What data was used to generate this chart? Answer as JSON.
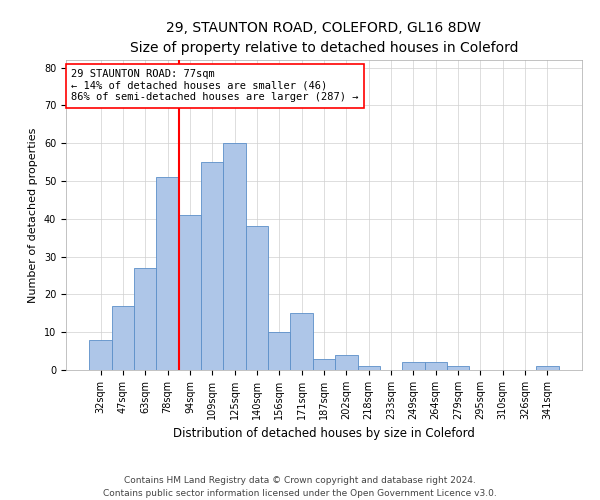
{
  "title1": "29, STAUNTON ROAD, COLEFORD, GL16 8DW",
  "title2": "Size of property relative to detached houses in Coleford",
  "xlabel": "Distribution of detached houses by size in Coleford",
  "ylabel": "Number of detached properties",
  "bar_labels": [
    "32sqm",
    "47sqm",
    "63sqm",
    "78sqm",
    "94sqm",
    "109sqm",
    "125sqm",
    "140sqm",
    "156sqm",
    "171sqm",
    "187sqm",
    "202sqm",
    "218sqm",
    "233sqm",
    "249sqm",
    "264sqm",
    "279sqm",
    "295sqm",
    "310sqm",
    "326sqm",
    "341sqm"
  ],
  "bar_values": [
    8,
    17,
    27,
    51,
    41,
    55,
    60,
    38,
    10,
    15,
    3,
    4,
    1,
    0,
    2,
    2,
    1,
    0,
    0,
    0,
    1
  ],
  "bar_color": "#aec6e8",
  "bar_edgecolor": "#5b8fc9",
  "vline_x": 3.5,
  "vline_color": "red",
  "annotation_line1": "29 STAUNTON ROAD: 77sqm",
  "annotation_line2": "← 14% of detached houses are smaller (46)",
  "annotation_line3": "86% of semi-detached houses are larger (287) →",
  "annotation_box_color": "white",
  "annotation_box_edgecolor": "red",
  "ylim": [
    0,
    82
  ],
  "yticks": [
    0,
    10,
    20,
    30,
    40,
    50,
    60,
    70,
    80
  ],
  "footnote": "Contains HM Land Registry data © Crown copyright and database right 2024.\nContains public sector information licensed under the Open Government Licence v3.0.",
  "title1_fontsize": 10,
  "title2_fontsize": 9.5,
  "xlabel_fontsize": 8.5,
  "ylabel_fontsize": 8,
  "tick_fontsize": 7,
  "annotation_fontsize": 7.5,
  "footnote_fontsize": 6.5
}
